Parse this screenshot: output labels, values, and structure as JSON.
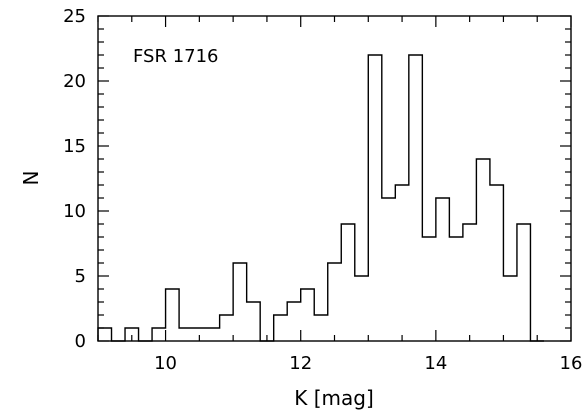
{
  "chart_data": {
    "type": "histogram",
    "annotation": "FSR 1716",
    "xlabel": "K [mag]",
    "ylabel": "N",
    "xlim": [
      9,
      16
    ],
    "ylim": [
      0,
      25
    ],
    "xticks": [
      10,
      12,
      14,
      16
    ],
    "xtick_labels": [
      "10",
      "12",
      "14",
      "16"
    ],
    "yticks": [
      0,
      5,
      10,
      15,
      20,
      25
    ],
    "ytick_labels": [
      "0",
      "5",
      "10",
      "15",
      "20",
      "25"
    ],
    "bin_width": 0.2,
    "bin_left_edges": [
      9.0,
      9.2,
      9.4,
      9.6,
      9.8,
      10.0,
      10.2,
      10.4,
      10.6,
      10.8,
      11.0,
      11.2,
      11.4,
      11.6,
      11.8,
      12.0,
      12.2,
      12.4,
      12.6,
      12.8,
      13.0,
      13.2,
      13.4,
      13.6,
      13.8,
      14.0,
      14.2,
      14.4,
      14.6,
      14.8,
      15.0,
      15.2,
      15.4
    ],
    "counts": [
      1,
      0,
      1,
      0,
      1,
      4,
      1,
      1,
      1,
      2,
      6,
      3,
      0,
      2,
      3,
      4,
      2,
      6,
      9,
      5,
      22,
      11,
      12,
      22,
      8,
      11,
      8,
      9,
      14,
      12,
      5,
      9,
      0
    ],
    "grid": false,
    "legend": "none"
  }
}
